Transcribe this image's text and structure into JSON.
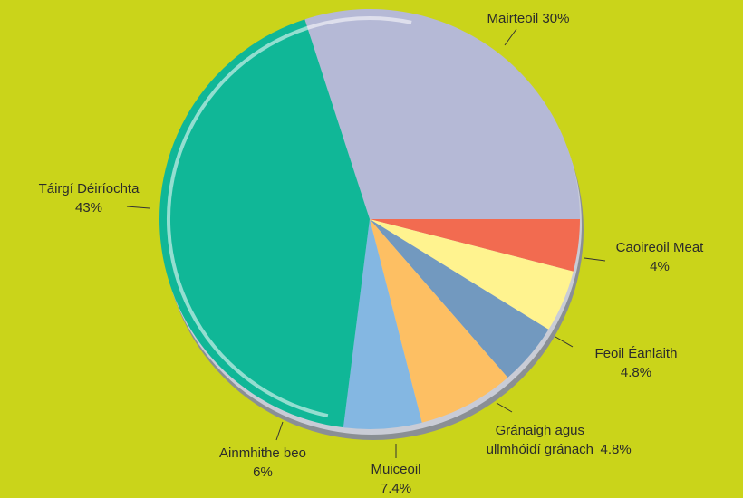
{
  "chart_data": {
    "type": "pie",
    "categories": [
      "Mairteoil",
      "Caoireoil Meat",
      "Feoil Éanlaith",
      "Gránaigh agus ullmhóidí gránach",
      "Muiceoil",
      "Ainmhithe beo",
      "Táirgí Déiríochta"
    ],
    "values": [
      30,
      4,
      4.8,
      4.8,
      7.4,
      6,
      43
    ],
    "value_labels": [
      "30%",
      "4%",
      "4.8%",
      "4.8%",
      "7.4%",
      "6%",
      "43%"
    ],
    "colors": [
      "#b5b9d6",
      "#f26b50",
      "#fff38f",
      "#7299bf",
      "#fdbf63",
      "#84b7e2",
      "#10b797"
    ]
  }
}
